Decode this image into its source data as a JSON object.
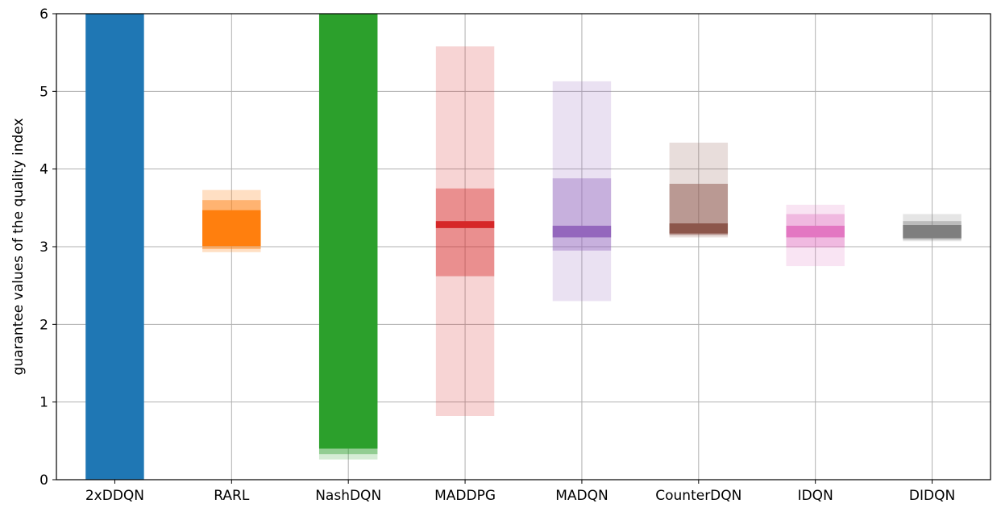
{
  "chart_data": {
    "type": "bar",
    "title": "",
    "xlabel": "",
    "ylabel": "guarantee values of the quality index",
    "ylim": [
      0,
      6
    ],
    "yticks": [
      0,
      1,
      2,
      3,
      4,
      5,
      6
    ],
    "grid": true,
    "legend": "none",
    "categories": [
      "2xDDQN",
      "RARL",
      "NashDQN",
      "MADDPG",
      "MADQN",
      "CounterDQN",
      "IDQN",
      "DIDQN"
    ],
    "series": [
      {
        "color": "#1f77b4",
        "bands": [
          {
            "low": 0.0,
            "high": 6.0,
            "opacity": 1.0
          }
        ]
      },
      {
        "color": "#ff7f0e",
        "bands": [
          {
            "low": 2.93,
            "high": 3.73,
            "opacity": 0.25
          },
          {
            "low": 2.97,
            "high": 3.6,
            "opacity": 0.45
          },
          {
            "low": 3.01,
            "high": 3.47,
            "opacity": 1.0
          }
        ]
      },
      {
        "color": "#2ca02c",
        "bands": [
          {
            "low": 0.26,
            "high": 6.0,
            "opacity": 0.2
          },
          {
            "low": 0.33,
            "high": 6.0,
            "opacity": 0.4
          },
          {
            "low": 0.4,
            "high": 6.0,
            "opacity": 1.0
          }
        ]
      },
      {
        "color": "#d62728",
        "bands": [
          {
            "low": 0.82,
            "high": 5.58,
            "opacity": 0.2
          },
          {
            "low": 2.62,
            "high": 3.75,
            "opacity": 0.4
          },
          {
            "low": 3.24,
            "high": 3.33,
            "opacity": 1.0
          }
        ]
      },
      {
        "color": "#9467bd",
        "bands": [
          {
            "low": 2.3,
            "high": 5.13,
            "opacity": 0.2
          },
          {
            "low": 2.95,
            "high": 3.88,
            "opacity": 0.4
          },
          {
            "low": 3.12,
            "high": 3.27,
            "opacity": 1.0
          }
        ]
      },
      {
        "color": "#8c564b",
        "bands": [
          {
            "low": 3.12,
            "high": 4.34,
            "opacity": 0.2
          },
          {
            "low": 3.15,
            "high": 3.81,
            "opacity": 0.5
          },
          {
            "low": 3.17,
            "high": 3.3,
            "opacity": 1.0
          }
        ]
      },
      {
        "color": "#e377c2",
        "bands": [
          {
            "low": 2.75,
            "high": 3.54,
            "opacity": 0.2
          },
          {
            "low": 2.99,
            "high": 3.42,
            "opacity": 0.4
          },
          {
            "low": 3.12,
            "high": 3.27,
            "opacity": 1.0
          }
        ]
      },
      {
        "color": "#7f7f7f",
        "bands": [
          {
            "low": 3.07,
            "high": 3.42,
            "opacity": 0.2
          },
          {
            "low": 3.09,
            "high": 3.33,
            "opacity": 0.4
          },
          {
            "low": 3.11,
            "high": 3.28,
            "opacity": 1.0
          }
        ]
      }
    ]
  }
}
